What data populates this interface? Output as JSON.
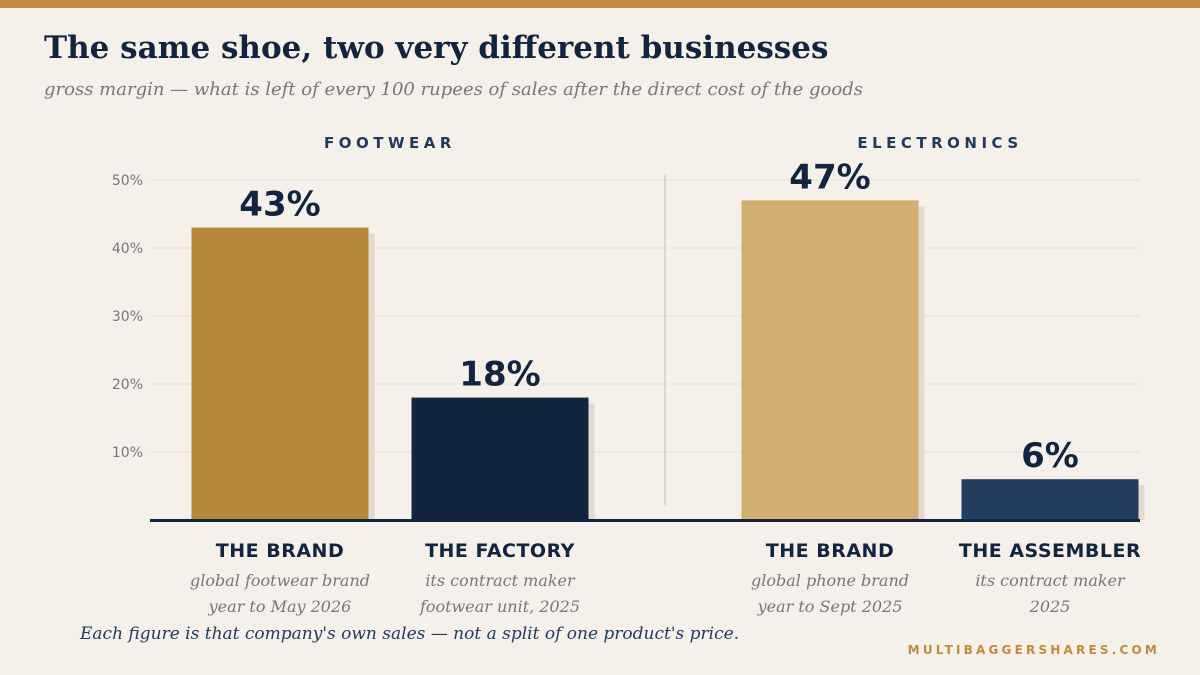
{
  "header": {
    "title": "The same shoe, two very different businesses",
    "subtitle": "gross margin — what is left of every 100 rupees of sales after the direct cost of the goods"
  },
  "footer": {
    "note": "Each figure is that company's own sales — not a split of one product's price.",
    "site": "MULTIBAGGERSHARES.COM"
  },
  "colors": {
    "background": "#f5f0ea",
    "accent": "#bf8c3b",
    "navy": "#112440",
    "grid": "#e6dfd6",
    "muted": "#777777"
  },
  "chart_data": {
    "type": "bar",
    "title": "The same shoe, two very different businesses",
    "subtitle": "gross margin — what is left of every 100 rupees of sales after the direct cost of the goods",
    "ylim": [
      0,
      50
    ],
    "yticks": [
      10,
      20,
      30,
      40,
      50
    ],
    "ytick_labels": [
      "10%",
      "20%",
      "30%",
      "40%",
      "50%"
    ],
    "grid": true,
    "groups": [
      {
        "name": "FOOTWEAR",
        "bars": [
          {
            "label": "THE BRAND",
            "sub1": "global footwear brand",
            "sub2": "year to May 2026",
            "value": 43,
            "value_label": "43%",
            "color": "#b5883b"
          },
          {
            "label": "THE FACTORY",
            "sub1": "its contract maker",
            "sub2": "footwear unit, 2025",
            "value": 18,
            "value_label": "18%",
            "color": "#112440"
          }
        ]
      },
      {
        "name": "ELECTRONICS",
        "bars": [
          {
            "label": "THE BRAND",
            "sub1": "global phone brand",
            "sub2": "year to Sept 2025",
            "value": 47,
            "value_label": "47%",
            "color": "#d4ae70"
          },
          {
            "label": "THE ASSEMBLER",
            "sub1": "its contract maker",
            "sub2": "2025",
            "value": 6,
            "value_label": "6%",
            "color": "#243d60"
          }
        ]
      }
    ]
  }
}
